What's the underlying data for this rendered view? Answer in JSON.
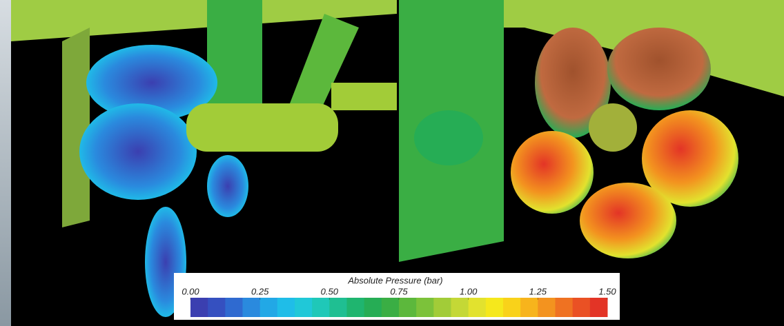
{
  "colorbar": {
    "title": "Absolute Pressure (bar)",
    "range": [
      0,
      1.5
    ],
    "ticks": [
      {
        "value": 0,
        "label": "0.00"
      },
      {
        "value": 0.25,
        "label": "0.25"
      },
      {
        "value": 0.5,
        "label": "0.50"
      },
      {
        "value": 0.75,
        "label": "0.75"
      },
      {
        "value": 1,
        "label": "1.00"
      },
      {
        "value": 1.25,
        "label": "1.25"
      },
      {
        "value": 1.5,
        "label": "1.50"
      }
    ],
    "colors": [
      "#3b3fb0",
      "#3550c0",
      "#2f6ad0",
      "#2a8ade",
      "#22a8e6",
      "#1fbde8",
      "#20c8d8",
      "#1fc8b8",
      "#1fbf92",
      "#1fb56f",
      "#26ad55",
      "#3aae44",
      "#5cb83c",
      "#7cc23a",
      "#a2cc38",
      "#c4d836",
      "#e2e22e",
      "#f5e81c",
      "#f9d21a",
      "#f7b41c",
      "#f3931f",
      "#ef7222",
      "#ea5124",
      "#e33426"
    ]
  }
}
